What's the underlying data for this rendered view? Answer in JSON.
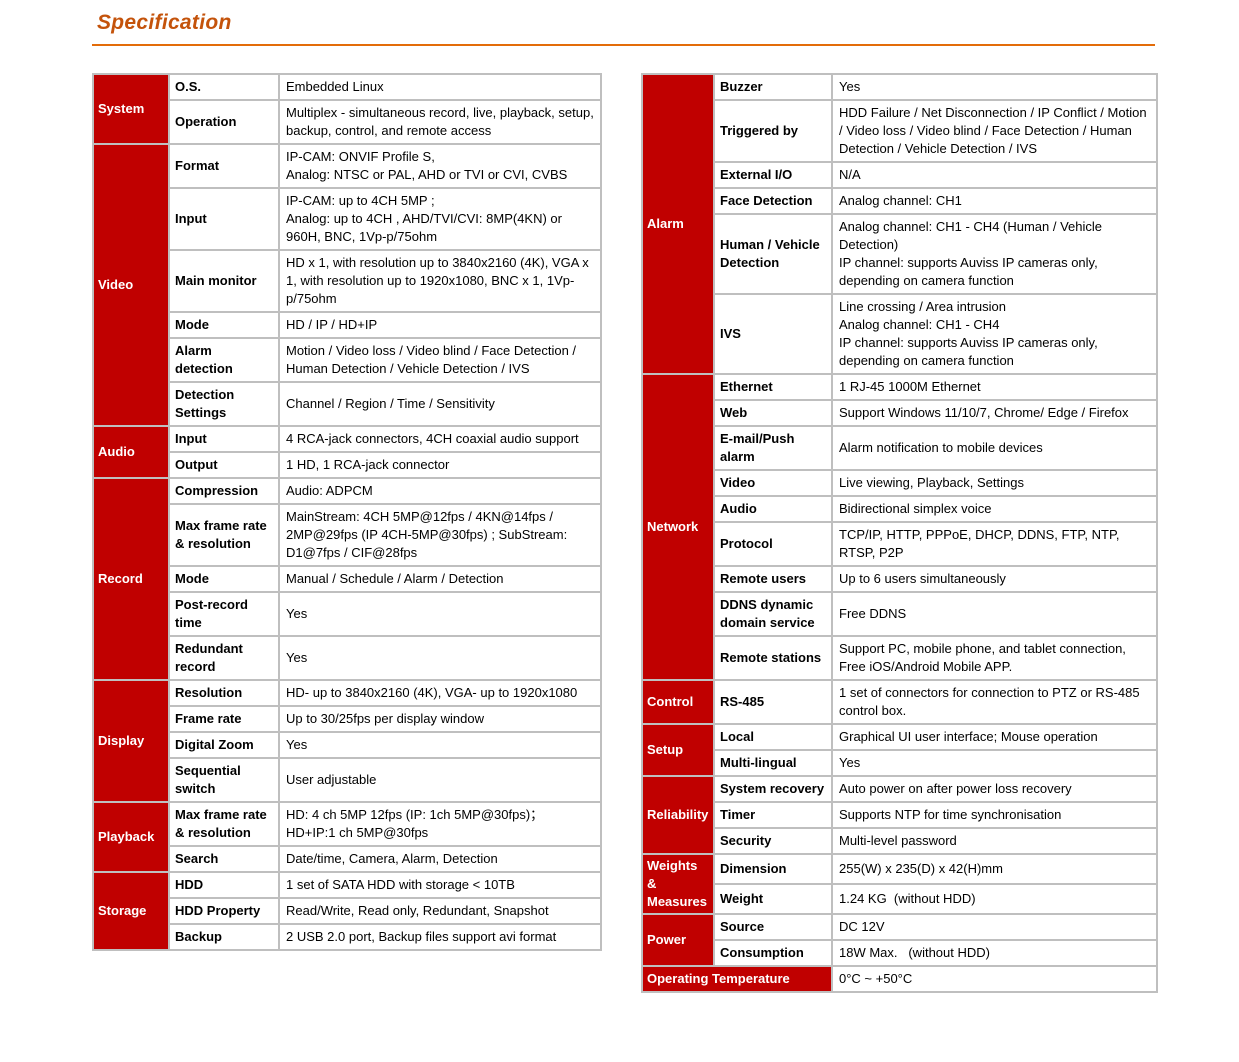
{
  "page": {
    "title": "Specification"
  },
  "colors": {
    "accent_red": "#C00000",
    "title_orange": "#C4530B",
    "rule_orange": "#E36C09",
    "border_gray": "#BFBFBF"
  },
  "left_table": {
    "sections": [
      {
        "name": "System",
        "rows": [
          {
            "key": "O.S.",
            "value": "Embedded Linux"
          },
          {
            "key": "Operation",
            "value": "Multiplex - simultaneous record, live, playback, setup, backup, control, and remote access"
          }
        ]
      },
      {
        "name": "Video",
        "rows": [
          {
            "key": "Format",
            "value": "IP-CAM: ONVIF Profile S,\nAnalog: NTSC or PAL, AHD or TVI or CVI, CVBS"
          },
          {
            "key": "Input",
            "value": "IP-CAM: up to 4CH 5MP ;\nAnalog: up to 4CH , AHD/TVI/CVI: 8MP(4KN) or 960H, BNC, 1Vp-p/75ohm"
          },
          {
            "key": "Main monitor",
            "value": "HD x 1, with resolution up to 3840x2160 (4K), VGA x 1, with resolution up to 1920x1080, BNC x 1, 1Vp-p/75ohm"
          },
          {
            "key": "Mode",
            "value": "HD / IP / HD+IP"
          },
          {
            "key": "Alarm detection",
            "value": "Motion / Video loss / Video blind / Face Detection / Human Detection / Vehicle Detection / IVS"
          },
          {
            "key": "Detection Settings",
            "value": "Channel / Region / Time / Sensitivity"
          }
        ]
      },
      {
        "name": "Audio",
        "rows": [
          {
            "key": "Input",
            "value": "4 RCA-jack connectors, 4CH coaxial audio support"
          },
          {
            "key": "Output",
            "value": "1 HD, 1 RCA-jack connector"
          }
        ]
      },
      {
        "name": "Record",
        "rows": [
          {
            "key": "Compression",
            "value": "Audio: ADPCM"
          },
          {
            "key": "Max frame rate & resolution",
            "value": "MainStream: 4CH 5MP@12fps / 4KN@14fps / 2MP@29fps (IP 4CH-5MP@30fps) ; SubStream: D1@7fps / CIF@28fps"
          },
          {
            "key": "Mode",
            "value": "Manual / Schedule / Alarm / Detection"
          },
          {
            "key": "Post-record time",
            "value": "Yes"
          },
          {
            "key": "Redundant record",
            "value": "Yes"
          }
        ]
      },
      {
        "name": "Display",
        "rows": [
          {
            "key": "Resolution",
            "value": "HD- up to 3840x2160 (4K), VGA- up to 1920x1080"
          },
          {
            "key": "Frame rate",
            "value": "Up to 30/25fps per display window"
          },
          {
            "key": "Digital Zoom",
            "value": "Yes"
          },
          {
            "key": "Sequential switch",
            "value": "User adjustable"
          }
        ]
      },
      {
        "name": "Playback",
        "rows": [
          {
            "key": "Max frame rate & resolution",
            "value": "HD: 4 ch 5MP 12fps (IP: 1ch 5MP@30fps)；\nHD+IP:1 ch 5MP@30fps"
          },
          {
            "key": "Search",
            "value": "Date/time, Camera, Alarm, Detection"
          }
        ]
      },
      {
        "name": "Storage",
        "rows": [
          {
            "key": "HDD",
            "value": "1 set of SATA HDD with storage < 10TB"
          },
          {
            "key": "HDD Property",
            "value": "Read/Write, Read only, Redundant, Snapshot"
          },
          {
            "key": "Backup",
            "value": "2 USB 2.0 port, Backup files support avi format"
          }
        ]
      }
    ]
  },
  "right_table": {
    "sections": [
      {
        "name": "Alarm",
        "rows": [
          {
            "key": "Buzzer",
            "value": "Yes"
          },
          {
            "key": "Triggered by",
            "value": "HDD Failure / Net Disconnection / IP Conflict / Motion / Video loss / Video blind / Face Detection / Human Detection / Vehicle Detection / IVS"
          },
          {
            "key": "External I/O",
            "value": "N/A"
          },
          {
            "key": "Face Detection",
            "value": "Analog channel: CH1"
          },
          {
            "key": "Human / Vehicle Detection",
            "value": "Analog channel: CH1 - CH4 (Human / Vehicle Detection)\nIP channel: supports Auviss IP cameras only, depending on camera function"
          },
          {
            "key": "IVS",
            "value": "Line crossing / Area intrusion\nAnalog channel: CH1 - CH4\nIP channel: supports Auviss IP cameras only, depending on camera function"
          }
        ]
      },
      {
        "name": "Network",
        "rows": [
          {
            "key": "Ethernet",
            "value": "1 RJ-45 1000M Ethernet"
          },
          {
            "key": "Web",
            "value": "Support Windows 11/10/7, Chrome/ Edge / Firefox"
          },
          {
            "key": "E-mail/Push alarm",
            "value": "Alarm notification to mobile devices"
          },
          {
            "key": "Video",
            "value": "Live viewing, Playback, Settings"
          },
          {
            "key": "Audio",
            "value": "Bidirectional simplex voice"
          },
          {
            "key": "Protocol",
            "value": "TCP/IP, HTTP, PPPoE, DHCP, DDNS, FTP, NTP, RTSP, P2P"
          },
          {
            "key": "Remote users",
            "value": "Up to 6 users simultaneously"
          },
          {
            "key": "DDNS dynamic domain service",
            "value": "Free DDNS"
          },
          {
            "key": "Remote stations",
            "value": "Support PC, mobile phone, and tablet connection, Free iOS/Android Mobile APP."
          }
        ]
      },
      {
        "name": "Control",
        "rows": [
          {
            "key": "RS-485",
            "value": "1 set of connectors for connection to PTZ or RS-485 control box."
          }
        ]
      },
      {
        "name": "Setup",
        "rows": [
          {
            "key": "Local",
            "value": "Graphical UI user interface; Mouse operation"
          },
          {
            "key": "Multi-lingual",
            "value": "Yes"
          }
        ]
      },
      {
        "name": "Reliability",
        "rows": [
          {
            "key": "System recovery",
            "value": "Auto power on after power loss recovery"
          },
          {
            "key": "Timer",
            "value": "Supports NTP for time synchronisation"
          },
          {
            "key": "Security",
            "value": "Multi-level password"
          }
        ]
      },
      {
        "name": "Weights & Measures",
        "rows": [
          {
            "key": "Dimension",
            "value": "255(W) x 235(D) x 42(H)mm"
          },
          {
            "key": "Weight",
            "value": "1.24 KG  (without HDD)"
          }
        ]
      },
      {
        "name": "Power",
        "rows": [
          {
            "key": "Source",
            "value": "DC 12V"
          },
          {
            "key": "Consumption",
            "value": "18W Max.   (without HDD)"
          }
        ]
      }
    ],
    "footer": {
      "key": "Operating Temperature",
      "value": "0°C ~ +50°C"
    }
  }
}
